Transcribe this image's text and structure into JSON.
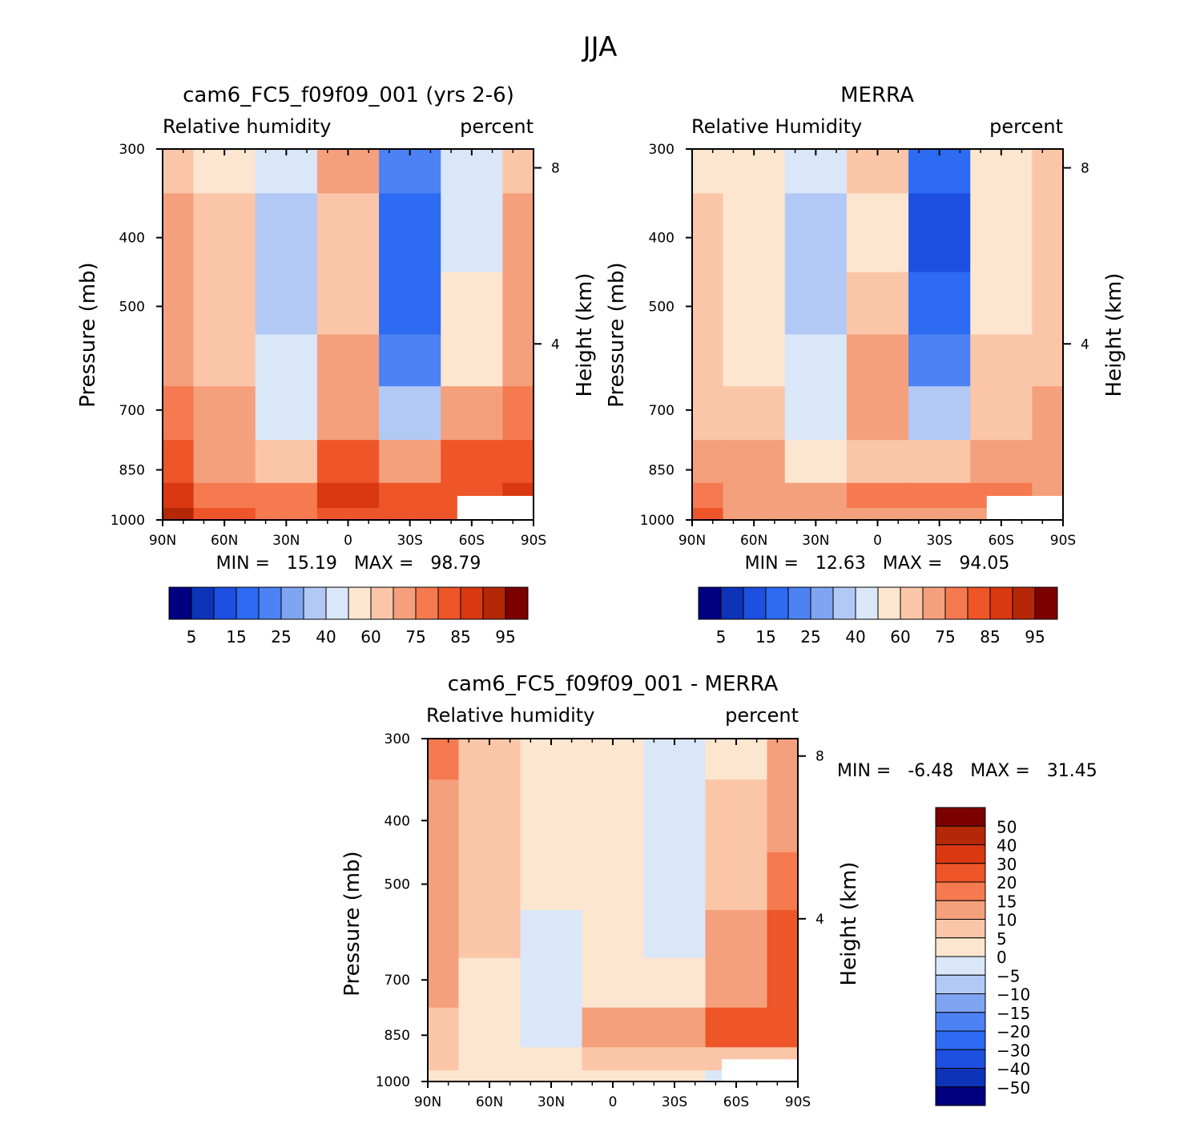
{
  "figure_title": "JJA",
  "panels": [
    {
      "id": "model",
      "title": "cam6_FC5_f09f09_001 (yrs 2-6)",
      "left_label": "Relative humidity",
      "right_label": "percent",
      "ylabel": "Pressure (mb)",
      "y2label": "Height (km)",
      "minmax": "MIN =   15.19   MAX =   98.79"
    },
    {
      "id": "obs",
      "title": "MERRA",
      "left_label": "Relative Humidity",
      "right_label": "percent",
      "ylabel": "Pressure (mb)",
      "y2label": "Height (km)",
      "minmax": "MIN =   12.63   MAX =   94.05"
    },
    {
      "id": "diff",
      "title": "cam6_FC5_f09f09_001 - MERRA",
      "left_label": "Relative humidity",
      "right_label": "percent",
      "ylabel": "Pressure (mb)",
      "y2label": "Height (km)",
      "minmax": "MIN =   -6.48   MAX =   31.45"
    }
  ],
  "chart_data": [
    {
      "type": "heatmap",
      "panel": "model",
      "title": "cam6_FC5_f09f09_001 (yrs 2-6)",
      "subtitle": "Relative humidity",
      "units": "percent",
      "xlabel": "",
      "ylabel": "Pressure (mb)",
      "y2label": "Height (km)",
      "x_ticks": [
        "90N",
        "60N",
        "30N",
        "0",
        "30S",
        "60S",
        "90S"
      ],
      "y_ticks": [
        "300",
        "400",
        "500",
        "700",
        "850",
        "1000"
      ],
      "y2_ticks": [
        "8",
        "4"
      ],
      "y_scale": "log",
      "ylim": [
        1000,
        300
      ],
      "x": [
        90,
        60,
        30,
        0,
        -30,
        -60,
        -90
      ],
      "y": [
        300,
        400,
        500,
        600,
        700,
        850,
        925,
        1000
      ],
      "z": [
        [
          62,
          58,
          40,
          65,
          22,
          40,
          62,
          78
        ],
        [
          74,
          60,
          35,
          62,
          18,
          48,
          65,
          80
        ],
        [
          72,
          60,
          38,
          63,
          18,
          52,
          70,
          82
        ],
        [
          70,
          62,
          42,
          66,
          22,
          58,
          72,
          85
        ],
        [
          75,
          68,
          45,
          70,
          30,
          66,
          76,
          87
        ],
        [
          80,
          74,
          62,
          82,
          66,
          80,
          83,
          88
        ],
        [
          86,
          78,
          75,
          88,
          80,
          82,
          85,
          90
        ],
        [
          92,
          80,
          78,
          82,
          80,
          80,
          82,
          90
        ]
      ],
      "min": 15.19,
      "max": 98.79,
      "colorbar_labels": [
        "5",
        "15",
        "25",
        "40",
        "60",
        "75",
        "85",
        "95"
      ]
    },
    {
      "type": "heatmap",
      "panel": "obs",
      "title": "MERRA",
      "subtitle": "Relative Humidity",
      "units": "percent",
      "xlabel": "",
      "ylabel": "Pressure (mb)",
      "y2label": "Height (km)",
      "x_ticks": [
        "90N",
        "60N",
        "30N",
        "0",
        "30S",
        "60S",
        "90S"
      ],
      "y_ticks": [
        "300",
        "400",
        "500",
        "700",
        "850",
        "1000"
      ],
      "y2_ticks": [
        "8",
        "4"
      ],
      "y_scale": "log",
      "ylim": [
        1000,
        300
      ],
      "x": [
        90,
        60,
        30,
        0,
        -30,
        -60,
        -90
      ],
      "y": [
        300,
        400,
        500,
        600,
        700,
        850,
        925,
        1000
      ],
      "z": [
        [
          55,
          55,
          45,
          60,
          18,
          55,
          60,
          62
        ],
        [
          60,
          55,
          38,
          58,
          14,
          55,
          60,
          65
        ],
        [
          60,
          55,
          38,
          62,
          16,
          58,
          62,
          66
        ],
        [
          62,
          56,
          42,
          70,
          22,
          60,
          64,
          66
        ],
        [
          64,
          60,
          48,
          68,
          30,
          62,
          65,
          60
        ],
        [
          68,
          66,
          56,
          62,
          60,
          65,
          68,
          45
        ],
        [
          76,
          72,
          66,
          78,
          78,
          78,
          72,
          55
        ],
        [
          80,
          74,
          68,
          74,
          74,
          74,
          80,
          70
        ]
      ],
      "min": 12.63,
      "max": 94.05,
      "colorbar_labels": [
        "5",
        "15",
        "25",
        "40",
        "60",
        "75",
        "85",
        "95"
      ]
    },
    {
      "type": "heatmap",
      "panel": "diff",
      "title": "cam6_FC5_f09f09_001 - MERRA",
      "subtitle": "Relative humidity",
      "units": "percent",
      "xlabel": "",
      "ylabel": "Pressure (mb)",
      "y2label": "Height (km)",
      "x_ticks": [
        "90N",
        "60N",
        "30N",
        "0",
        "30S",
        "60S",
        "90S"
      ],
      "y_ticks": [
        "300",
        "400",
        "500",
        "700",
        "850",
        "1000"
      ],
      "y2_ticks": [
        "8",
        "4"
      ],
      "y_scale": "log",
      "ylim": [
        1000,
        300
      ],
      "x": [
        90,
        60,
        30,
        0,
        -30,
        -60,
        -90
      ],
      "y": [
        300,
        400,
        500,
        600,
        700,
        850,
        925,
        1000
      ],
      "z": [
        [
          16,
          8,
          2,
          1,
          -2,
          4,
          14,
          18
        ],
        [
          12,
          8,
          2,
          2,
          -1,
          6,
          14,
          16
        ],
        [
          10,
          6,
          1,
          2,
          -2,
          8,
          18,
          16
        ],
        [
          10,
          5,
          -2,
          1,
          -3,
          10,
          20,
          18
        ],
        [
          10,
          4,
          -3,
          1,
          2,
          14,
          22,
          18
        ],
        [
          8,
          4,
          -2,
          10,
          10,
          22,
          20,
          20
        ],
        [
          6,
          4,
          0,
          6,
          6,
          6,
          8,
          10
        ],
        [
          4,
          2,
          3,
          3,
          2,
          -2,
          3,
          6
        ]
      ],
      "min": -6.48,
      "max": 31.45,
      "colorbar_labels": [
        "50",
        "40",
        "30",
        "20",
        "15",
        "10",
        "5",
        "0",
        "-5",
        "-10",
        "-15",
        "-20",
        "-30",
        "-40",
        "-50"
      ]
    }
  ],
  "colors": {
    "abs_levels": [
      "#000080",
      "#0d33b8",
      "#1d4fe0",
      "#2c6bf2",
      "#4c82f3",
      "#7fa5f2",
      "#b2c9f6",
      "#d9e7f8",
      "#fde6cf",
      "#fbc6a8",
      "#f5a07c",
      "#f57a50",
      "#ee5528",
      "#d93810",
      "#b42808",
      "#7d0000"
    ],
    "diff_levels": [
      "#000080",
      "#0d33b8",
      "#1d4fe0",
      "#2c6bf2",
      "#4c82f3",
      "#7fa5f2",
      "#b2c9f6",
      "#d9e7f8",
      "#fde6cf",
      "#fbc6a8",
      "#f5a07c",
      "#f57a50",
      "#ee5528",
      "#d93810",
      "#b42808",
      "#7d0000"
    ]
  }
}
